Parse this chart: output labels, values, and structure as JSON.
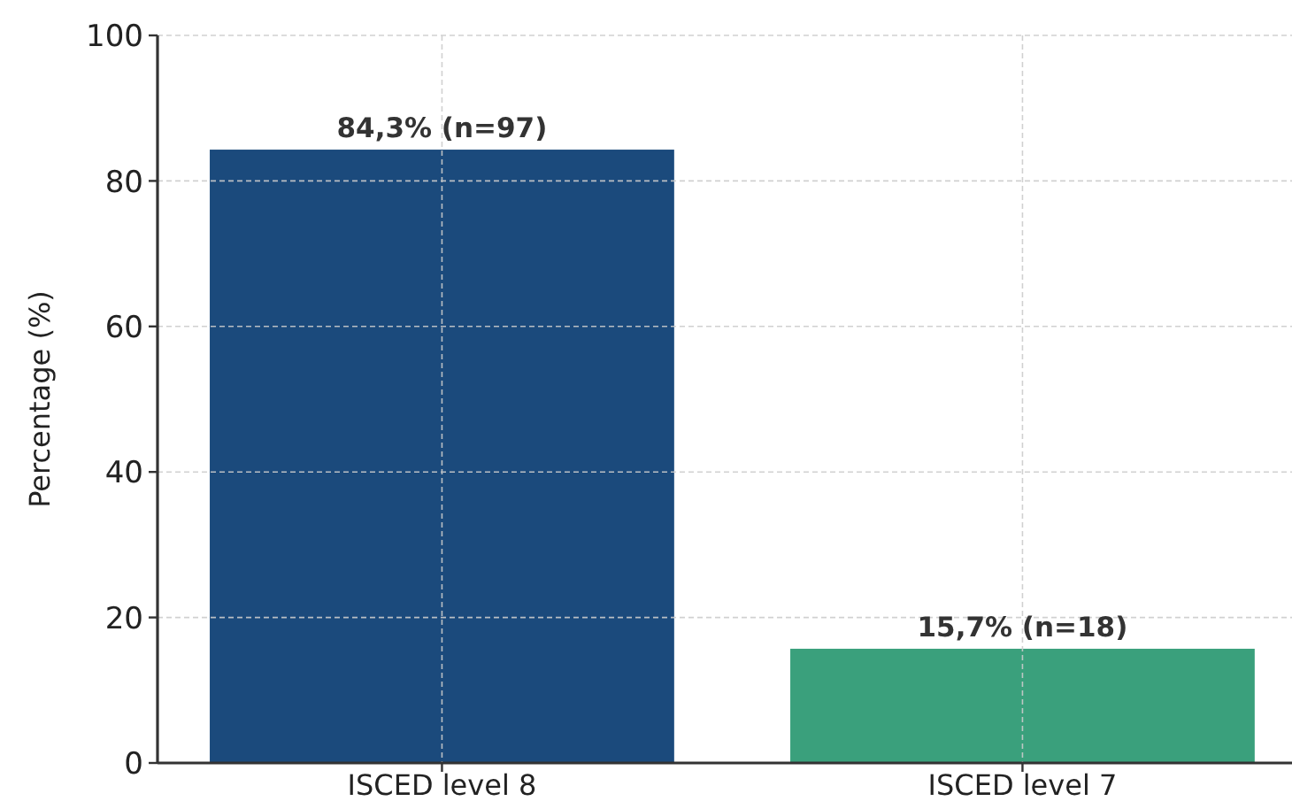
{
  "chart_data": {
    "type": "bar",
    "ylabel": "Percentage (%)",
    "categories": [
      "ISCED level 8",
      "ISCED level 7"
    ],
    "values": [
      84.3,
      15.7
    ],
    "colors": [
      "#1b4a7c",
      "#3aa07c"
    ],
    "value_labels": [
      "84,3% (n=97)",
      "15,7% (n=18)"
    ],
    "ylim": [
      0,
      100
    ],
    "yticks": [
      0,
      20,
      40,
      60,
      80,
      100
    ],
    "grid": true
  }
}
